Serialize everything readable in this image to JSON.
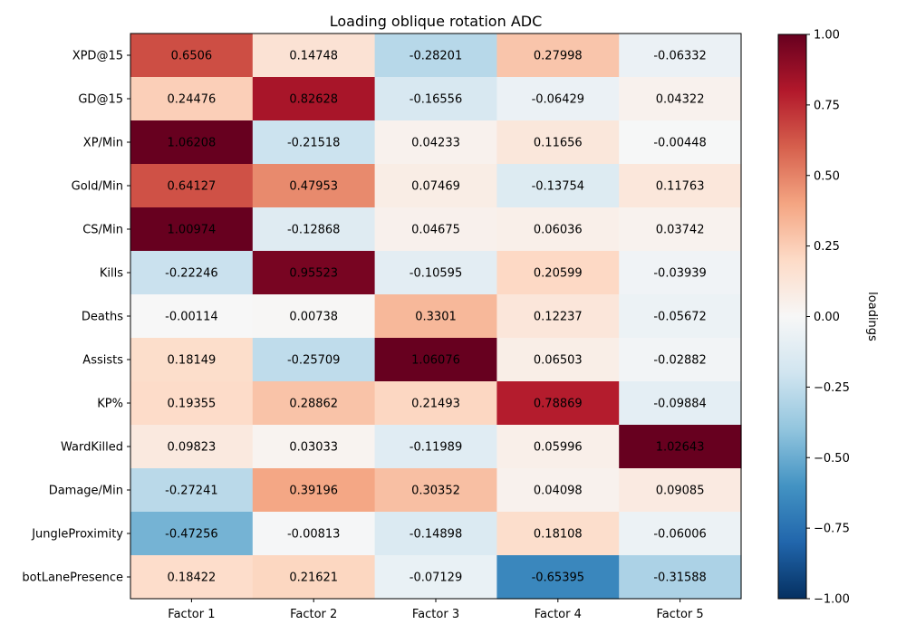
{
  "chart_data": {
    "type": "heatmap",
    "title": "Loading oblique rotation ADC",
    "rows": [
      "XPD@15",
      "GD@15",
      "XP/Min",
      "Gold/Min",
      "CS/Min",
      "Kills",
      "Deaths",
      "Assists",
      "KP%",
      "WardKilled",
      "Damage/Min",
      "JungleProximity",
      "botLanePresence"
    ],
    "columns": [
      "Factor 1",
      "Factor 2",
      "Factor 3",
      "Factor 4",
      "Factor 5"
    ],
    "values": [
      [
        0.6506,
        0.14748,
        -0.28201,
        0.27998,
        -0.06332
      ],
      [
        0.24476,
        0.82628,
        -0.16556,
        -0.06429,
        0.04322
      ],
      [
        1.06208,
        -0.21518,
        0.04233,
        0.11656,
        -0.00448
      ],
      [
        0.64127,
        0.47953,
        0.07469,
        -0.13754,
        0.11763
      ],
      [
        1.00974,
        -0.12868,
        0.04675,
        0.06036,
        0.03742
      ],
      [
        -0.22246,
        0.95523,
        -0.10595,
        0.20599,
        -0.03939
      ],
      [
        -0.00114,
        0.00738,
        0.3301,
        0.12237,
        -0.05672
      ],
      [
        0.18149,
        -0.25709,
        1.06076,
        0.06503,
        -0.02882
      ],
      [
        0.19355,
        0.28862,
        0.21493,
        0.78869,
        -0.09884
      ],
      [
        0.09823,
        0.03033,
        -0.11989,
        0.05996,
        1.02643
      ],
      [
        -0.27241,
        0.39196,
        0.30352,
        0.04098,
        0.09085
      ],
      [
        -0.47256,
        -0.00813,
        -0.14898,
        0.18108,
        -0.06006
      ],
      [
        0.18422,
        0.21621,
        -0.07129,
        -0.65395,
        -0.31588
      ]
    ],
    "labels": [
      [
        "0.6506",
        "0.14748",
        "-0.28201",
        "0.27998",
        "-0.06332"
      ],
      [
        "0.24476",
        "0.82628",
        "-0.16556",
        "-0.06429",
        "0.04322"
      ],
      [
        "1.06208",
        "-0.21518",
        "0.04233",
        "0.11656",
        "-0.00448"
      ],
      [
        "0.64127",
        "0.47953",
        "0.07469",
        "-0.13754",
        "0.11763"
      ],
      [
        "1.00974",
        "-0.12868",
        "0.04675",
        "0.06036",
        "0.03742"
      ],
      [
        "-0.22246",
        "0.95523",
        "-0.10595",
        "0.20599",
        "-0.03939"
      ],
      [
        "-0.00114",
        "0.00738",
        "0.3301",
        "0.12237",
        "-0.05672"
      ],
      [
        "0.18149",
        "-0.25709",
        "1.06076",
        "0.06503",
        "-0.02882"
      ],
      [
        "0.19355",
        "0.28862",
        "0.21493",
        "0.78869",
        "-0.09884"
      ],
      [
        "0.09823",
        "0.03033",
        "-0.11989",
        "0.05996",
        "1.02643"
      ],
      [
        "-0.27241",
        "0.39196",
        "0.30352",
        "0.04098",
        "0.09085"
      ],
      [
        "-0.47256",
        "-0.00813",
        "-0.14898",
        "0.18108",
        "-0.06006"
      ],
      [
        "0.18422",
        "0.21621",
        "-0.07129",
        "-0.65395",
        "-0.31588"
      ]
    ],
    "colorscale": {
      "name": "RdBu_r",
      "vmin": -1.0,
      "vmax": 1.0,
      "label": "loadings",
      "ticks": [
        -1.0,
        -0.75,
        -0.5,
        -0.25,
        0.0,
        0.25,
        0.5,
        0.75,
        1.0
      ],
      "tick_labels": [
        "−1.00",
        "−0.75",
        "−0.50",
        "−0.25",
        "0.00",
        "0.25",
        "0.50",
        "0.75",
        "1.00"
      ],
      "stops": [
        "#053061",
        "#2166ac",
        "#4393c3",
        "#92c5de",
        "#d1e5f0",
        "#f7f7f7",
        "#fddbc7",
        "#f4a582",
        "#d6604d",
        "#b2182b",
        "#67001f"
      ]
    },
    "grid": false
  }
}
